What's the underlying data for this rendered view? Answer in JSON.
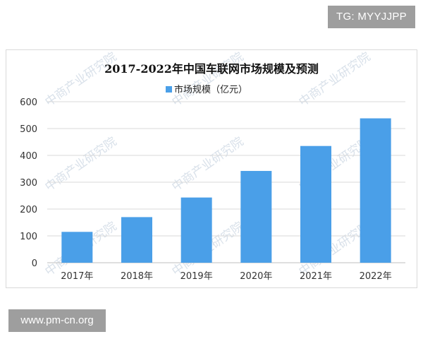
{
  "badges": {
    "top_right": "TG: MYYJJPP",
    "bottom_left": "www.pm-cn.org"
  },
  "watermark": {
    "text": "中商产业研究院",
    "color": "#b9c9d8"
  },
  "chart_data": {
    "type": "bar",
    "title": "2017-2022年中国车联网市场规模及预测",
    "legend": {
      "label": "市场规模（亿元）",
      "position": "top"
    },
    "categories": [
      "2017年",
      "2018年",
      "2019年",
      "2020年",
      "2021年",
      "2022年"
    ],
    "series": [
      {
        "name": "市场规模（亿元）",
        "values": [
          115,
          170,
          243,
          342,
          435,
          538
        ],
        "color": "#4a9fe8"
      }
    ],
    "ylim": [
      0,
      600
    ],
    "yticks": [
      "0",
      "100",
      "200",
      "300",
      "400",
      "500",
      "600"
    ],
    "grid": true
  }
}
